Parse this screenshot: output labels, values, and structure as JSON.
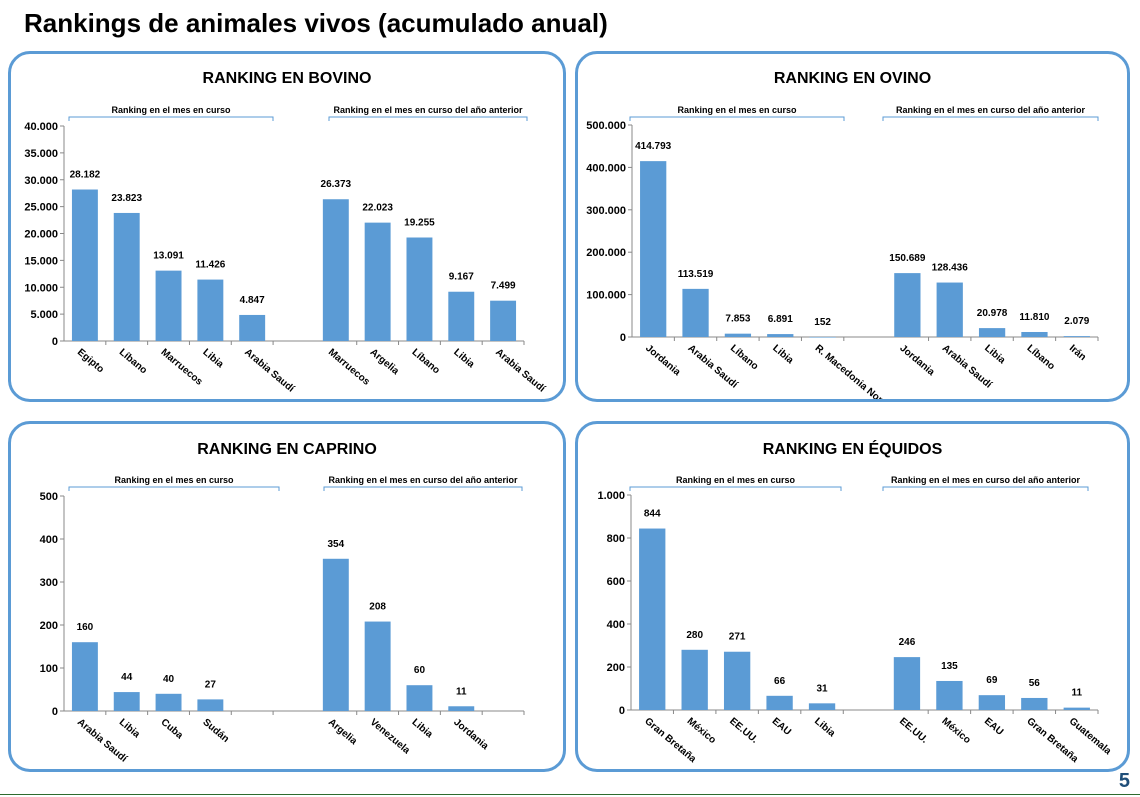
{
  "page": {
    "title": "Rankings de animales vivos (acumulado anual)",
    "page_number": "5",
    "bar_color": "#5b9bd5",
    "frame_color": "#5b9bd5"
  },
  "chart_data": [
    {
      "type": "bar",
      "title": "RANKING EN BOVINO",
      "group_labels": [
        "Ranking en el mes en curso",
        "Ranking en el mes en curso del año anterior"
      ],
      "groups": [
        {
          "categories": [
            "Egipto",
            "Líbano",
            "Marruecos",
            "Libia",
            "Arabia Saudí"
          ],
          "values": [
            28182,
            23823,
            13091,
            11426,
            4847
          ],
          "labels": [
            "28.182",
            "23.823",
            "13.091",
            "11.426",
            "4.847"
          ]
        },
        {
          "categories": [
            "Marruecos",
            "Argelia",
            "Líbano",
            "Libia",
            "Arabia Saudí"
          ],
          "values": [
            26373,
            22023,
            19255,
            9167,
            7499
          ],
          "labels": [
            "26.373",
            "22.023",
            "19.255",
            "9.167",
            "7.499"
          ]
        }
      ],
      "ylim": [
        0,
        40000
      ],
      "yticks": [
        0,
        5000,
        10000,
        15000,
        20000,
        25000,
        30000,
        35000,
        40000
      ],
      "ytick_labels": [
        "0",
        "5.000",
        "10.000",
        "15.000",
        "20.000",
        "25.000",
        "30.000",
        "35.000",
        "40.000"
      ]
    },
    {
      "type": "bar",
      "title": "RANKING EN OVINO",
      "group_labels": [
        "Ranking en el mes en curso",
        "Ranking en el mes en curso del año anterior"
      ],
      "groups": [
        {
          "categories": [
            "Jordania",
            "Arabia Saudí",
            "Líbano",
            "Libia",
            "R. Macedonia Norte"
          ],
          "values": [
            414793,
            113519,
            7853,
            6891,
            152
          ],
          "labels": [
            "414.793",
            "113.519",
            "7.853",
            "6.891",
            "152"
          ]
        },
        {
          "categories": [
            "Jordania",
            "Arabia Saudí",
            "Libia",
            "Líbano",
            "Irán"
          ],
          "values": [
            150689,
            128436,
            20978,
            11810,
            2079
          ],
          "labels": [
            "150.689",
            "128.436",
            "20.978",
            "11.810",
            "2.079"
          ]
        }
      ],
      "ylim": [
        0,
        500000
      ],
      "yticks": [
        0,
        100000,
        200000,
        300000,
        400000,
        500000
      ],
      "ytick_labels": [
        "0",
        "100.000",
        "200.000",
        "300.000",
        "400.000",
        "500.000"
      ]
    },
    {
      "type": "bar",
      "title": "RANKING EN CAPRINO",
      "group_labels": [
        "Ranking en el mes en curso",
        "Ranking en el mes en curso del año anterior"
      ],
      "groups": [
        {
          "categories": [
            "Arabia Saudí",
            "Libia",
            "Cuba",
            "Sudán",
            ""
          ],
          "values": [
            160,
            44,
            40,
            27,
            null
          ],
          "labels": [
            "160",
            "44",
            "40",
            "27",
            ""
          ]
        },
        {
          "categories": [
            "Argelia",
            "Venezuela",
            "Libia",
            "Jordania",
            ""
          ],
          "values": [
            354,
            208,
            60,
            11,
            null
          ],
          "labels": [
            "354",
            "208",
            "60",
            "11",
            ""
          ]
        }
      ],
      "ylim": [
        0,
        500
      ],
      "yticks": [
        0,
        100,
        200,
        300,
        400,
        500
      ],
      "ytick_labels": [
        "0",
        "100",
        "200",
        "300",
        "400",
        "500"
      ]
    },
    {
      "type": "bar",
      "title": "RANKING EN ÉQUIDOS",
      "group_labels": [
        "Ranking en el mes en curso",
        "Ranking en el mes en curso del año anterior"
      ],
      "groups": [
        {
          "categories": [
            "Gran Bretaña",
            "México",
            "EE.UU.",
            "EAU",
            "Libia"
          ],
          "values": [
            844,
            280,
            271,
            66,
            31
          ],
          "labels": [
            "844",
            "280",
            "271",
            "66",
            "31"
          ]
        },
        {
          "categories": [
            "EE.UU.",
            "México",
            "EAU",
            "Gran Bretaña",
            "Guatemala"
          ],
          "values": [
            246,
            135,
            69,
            56,
            11
          ],
          "labels": [
            "246",
            "135",
            "69",
            "56",
            "11"
          ]
        }
      ],
      "ylim": [
        0,
        1000
      ],
      "yticks": [
        0,
        200,
        400,
        600,
        800,
        1000
      ],
      "ytick_labels": [
        "0",
        "200",
        "400",
        "600",
        "800",
        "1.000"
      ]
    }
  ]
}
